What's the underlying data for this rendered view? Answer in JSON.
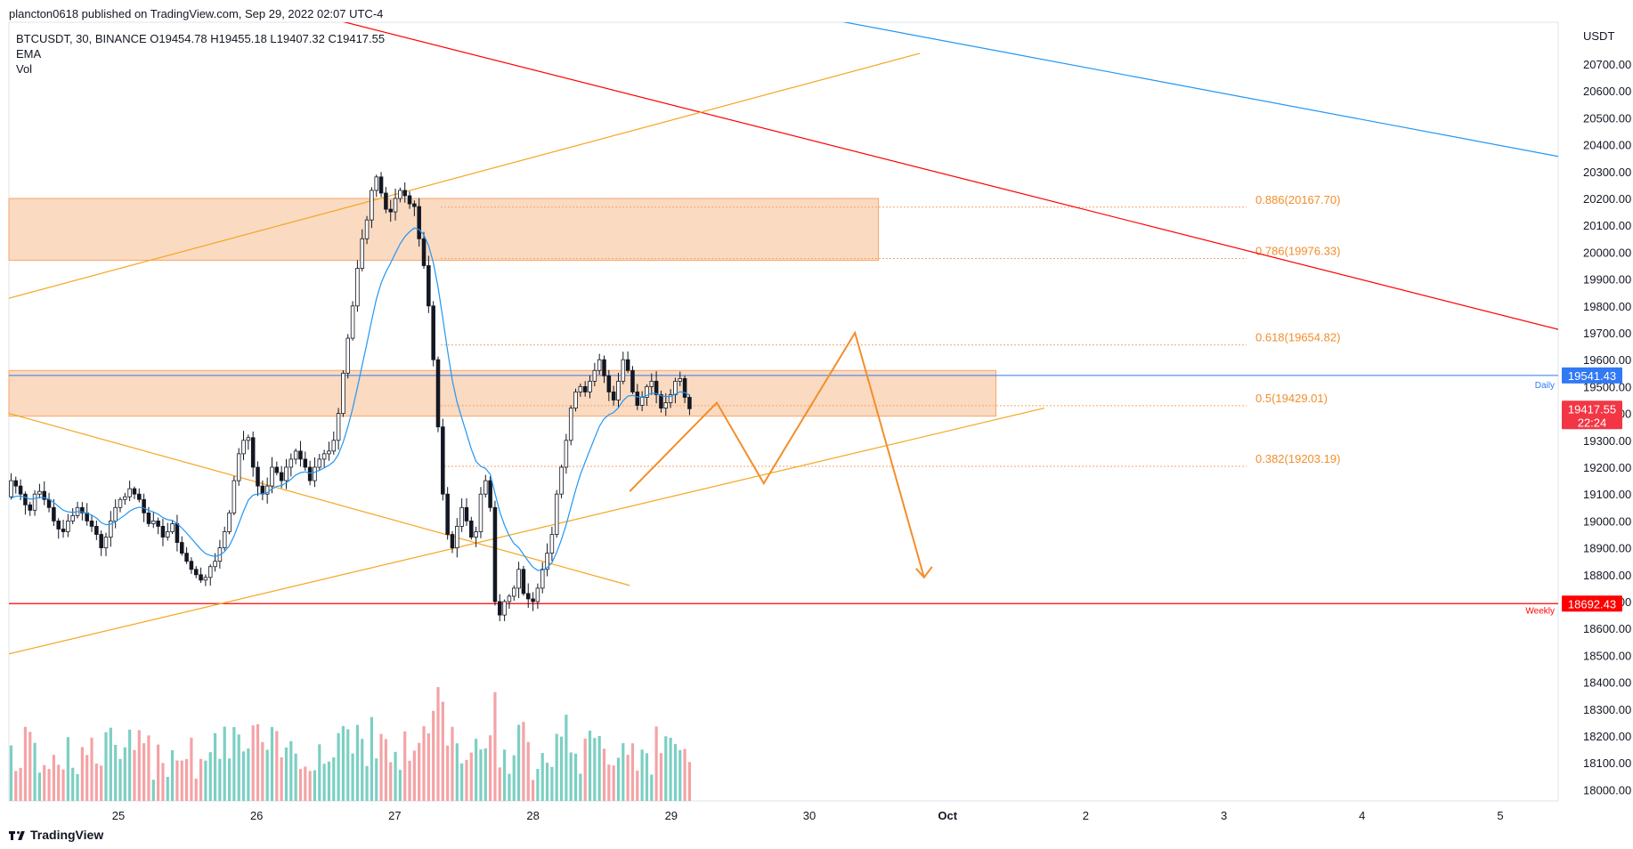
{
  "header": {
    "published": "plancton0618 published on TradingView.com, Sep 29, 2022 02:07 UTC-4"
  },
  "legend": {
    "symbol_line": "BTCUSDT, 30, BINANCE  O19454.78  H19455.18  L19407.32  C19417.55",
    "ema": "EMA",
    "vol": "Vol"
  },
  "footer": {
    "brand": "TradingView"
  },
  "chart_data": {
    "type": "candlestick",
    "symbol": "BTCUSDT",
    "interval": "30",
    "exchange": "BINANCE",
    "ohlc_last": {
      "open": 19454.78,
      "high": 19455.18,
      "low": 19407.32,
      "close": 19417.55
    },
    "currency_label": "USDT",
    "ylim": [
      17950,
      20900
    ],
    "yticks": [
      "20700.00",
      "20600.00",
      "20500.00",
      "20400.00",
      "20300.00",
      "20200.00",
      "20100.00",
      "20000.00",
      "19900.00",
      "19800.00",
      "19700.00",
      "19600.00",
      "19500.00",
      "19400.00",
      "19300.00",
      "19200.00",
      "19100.00",
      "19000.00",
      "18900.00",
      "18800.00",
      "18700.00",
      "18600.00",
      "18500.00",
      "18400.00",
      "18300.00",
      "18200.00",
      "18100.00",
      "18000.00"
    ],
    "xticks": [
      {
        "label": "25",
        "day": 25
      },
      {
        "label": "26",
        "day": 26
      },
      {
        "label": "27",
        "day": 27
      },
      {
        "label": "28",
        "day": 28
      },
      {
        "label": "29",
        "day": 29
      },
      {
        "label": "30",
        "day": 30
      },
      {
        "label": "Oct",
        "day": 31
      },
      {
        "label": "2",
        "day": 32
      },
      {
        "label": "3",
        "day": 33
      },
      {
        "label": "4",
        "day": 34
      },
      {
        "label": "5",
        "day": 35
      }
    ],
    "price_labels": [
      {
        "text": "19541.43",
        "value": 19541.43,
        "color": "#3179f5",
        "tag": "Daily"
      },
      {
        "text": "19417.55",
        "value": 19417.55,
        "color": "#f23645",
        "countdown": "22:24"
      },
      {
        "text": "18692.43",
        "value": 18692.43,
        "color": "#ff0000",
        "tag": "Weekly"
      }
    ],
    "fib_levels": [
      {
        "label": "0.886(20167.70)",
        "value": 20167.7
      },
      {
        "label": "0.786(19976.33)",
        "value": 19976.33
      },
      {
        "label": "0.618(19654.82)",
        "value": 19654.82
      },
      {
        "label": "0.5(19429.01)",
        "value": 19429.01
      },
      {
        "label": "0.382(19203.19)",
        "value": 19203.19
      }
    ],
    "zones": [
      {
        "from_day": 24.0,
        "to_day": 30.5,
        "low": 19970,
        "high": 20200
      },
      {
        "from_day": 24.0,
        "to_day": 31.35,
        "low": 19390,
        "high": 19560
      }
    ],
    "trendlines": [
      {
        "color": "#ff0000",
        "from": [
          26.3,
          20900
        ],
        "to": [
          35.9,
          19650
        ]
      },
      {
        "color": "#2196f3",
        "from": [
          29.8,
          20900
        ],
        "to": [
          35.9,
          20310
        ]
      },
      {
        "color": "#f5a623",
        "from": [
          24.0,
          19800
        ],
        "to": [
          30.8,
          20740
        ]
      },
      {
        "color": "#f5a623",
        "from": [
          24.0,
          19430
        ],
        "to": [
          28.7,
          18760
        ]
      },
      {
        "color": "#f5a623",
        "from": [
          24.0,
          18480
        ],
        "to": [
          31.7,
          19420
        ]
      }
    ],
    "projection_path": [
      [
        28.7,
        19110
      ],
      [
        29.33,
        19440
      ],
      [
        29.67,
        19140
      ],
      [
        30.33,
        19700
      ],
      [
        30.83,
        18790
      ]
    ],
    "series": [
      {
        "name": "BTCUSDT",
        "close": [
          19050,
          19060,
          19080,
          19120,
          19100,
          19090,
          19150,
          19130,
          19100,
          19060,
          19040,
          19100,
          19110,
          19080,
          19050,
          19000,
          18970,
          18960,
          19000,
          19020,
          19050,
          19030,
          19000,
          18980,
          18950,
          18900,
          18940,
          19000,
          19050,
          19080,
          19090,
          19120,
          19100,
          19080,
          19030,
          18990,
          19000,
          18980,
          18940,
          18960,
          18990,
          18920,
          18880,
          18850,
          18820,
          18800,
          18780,
          18790,
          18830,
          18850,
          18900,
          18960,
          19030,
          19150,
          19250,
          19300,
          19310,
          19200,
          19130,
          19100,
          19130,
          19200,
          19180,
          19150,
          19200,
          19230,
          19260,
          19230,
          19200,
          19150,
          19200,
          19230,
          19250,
          19260,
          19300,
          19400,
          19550,
          19680,
          19800,
          19940,
          20050,
          20120,
          20230,
          20280,
          20220,
          20160,
          20150,
          20200,
          20230,
          20210,
          20180,
          20170,
          20050,
          19950,
          19800,
          19600,
          19350,
          19100,
          18950,
          18900,
          18980,
          19050,
          19000,
          18940,
          18960,
          19100,
          19150,
          19050,
          18700,
          18650,
          18700,
          18720,
          18750,
          18820,
          18730,
          18710,
          18700,
          18750,
          18820,
          18880,
          18950,
          19100,
          19200,
          19300,
          19420,
          19480,
          19500,
          19480,
          19520,
          19560,
          19600,
          19540,
          19480,
          19450,
          19520,
          19600,
          19560,
          19480,
          19430,
          19460,
          19500,
          19520,
          19470,
          19420,
          19440,
          19470,
          19520,
          19530,
          19460,
          19417.55
        ]
      },
      {
        "name": "EMA"
      },
      {
        "name": "Vol"
      }
    ]
  }
}
